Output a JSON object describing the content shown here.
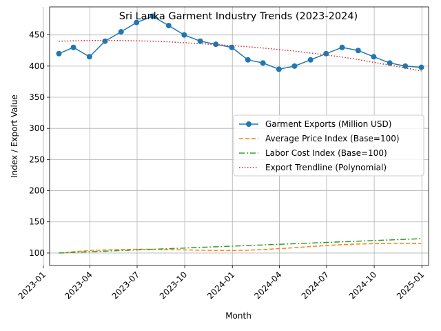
{
  "chart_data": {
    "type": "line",
    "title": "Sri Lanka Garment Industry Trends (2023-2024)",
    "xlabel": "Month",
    "ylabel": "Index / Export Value",
    "x_ticks": [
      "2023-01",
      "2023-04",
      "2023-07",
      "2023-10",
      "2024-01",
      "2024-04",
      "2024-07",
      "2024-10",
      "2025-01"
    ],
    "y_ticks": [
      100,
      150,
      200,
      250,
      300,
      350,
      400,
      450
    ],
    "ylim": [
      80,
      495
    ],
    "xlim": [
      "2023-01-13",
      "2025-01-14"
    ],
    "grid": true,
    "legend_position": "center-right",
    "x": [
      "2023-01-31",
      "2023-02-28",
      "2023-03-31",
      "2023-04-30",
      "2023-05-31",
      "2023-06-30",
      "2023-07-31",
      "2023-08-31",
      "2023-09-30",
      "2023-10-31",
      "2023-11-30",
      "2023-12-31",
      "2024-01-31",
      "2024-02-29",
      "2024-03-31",
      "2024-04-30",
      "2024-05-31",
      "2024-06-30",
      "2024-07-31",
      "2024-08-31",
      "2024-09-30",
      "2024-10-31",
      "2024-11-30",
      "2024-12-31"
    ],
    "series": [
      {
        "name": "Garment Exports (Million USD)",
        "color": "#1f77b4",
        "style": "solid-marker",
        "values": [
          420,
          430,
          415,
          440,
          455,
          470,
          480,
          465,
          450,
          440,
          435,
          430,
          410,
          405,
          395,
          400,
          410,
          420,
          430,
          425,
          415,
          405,
          400,
          398
        ]
      },
      {
        "name": "Average Price Index (Base=100)",
        "color": "#ff7f0e",
        "style": "dashed",
        "values": [
          100,
          102,
          104,
          105,
          105.5,
          106,
          106,
          105.5,
          105,
          104.5,
          104,
          104,
          104.5,
          105.5,
          107,
          108.5,
          110.5,
          112,
          113.5,
          114.5,
          115,
          115.5,
          115.5,
          115
        ]
      },
      {
        "name": "Labor Cost Index (Base=100)",
        "color": "#2ca02c",
        "style": "dashdot",
        "values": [
          100,
          101,
          102,
          103,
          104,
          105,
          106,
          107,
          108,
          109,
          110,
          111,
          112,
          113,
          114,
          115,
          116,
          117,
          118,
          119,
          120,
          121,
          122,
          123
        ]
      },
      {
        "name": "Export Trendline (Polynomial)",
        "color": "#d62728",
        "style": "dotted",
        "values": [
          440,
          440.5,
          441,
          441,
          441,
          440.5,
          440,
          439,
          437.5,
          436,
          434.5,
          433,
          431,
          429,
          426.5,
          424,
          421,
          418,
          414.5,
          410.5,
          406,
          401.5,
          397,
          392
        ]
      }
    ]
  }
}
